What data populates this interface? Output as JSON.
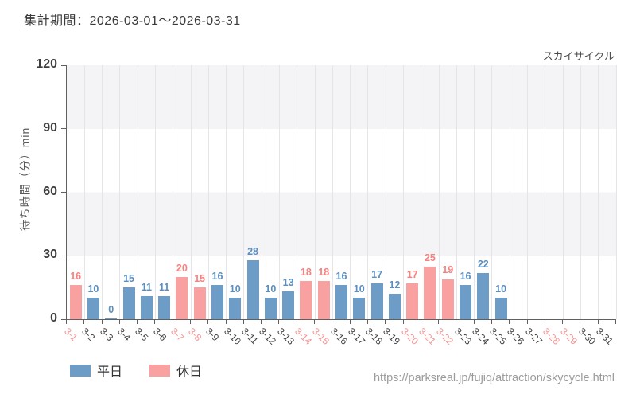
{
  "title": "集計期間：2026-03-01～2026-03-31",
  "chart_label": "スカイサイクル",
  "url": "https://parksreal.jp/fujiq/attraction/skycycle.html",
  "legend": {
    "weekday_label": "平日",
    "holiday_label": "休日"
  },
  "chart_data": {
    "type": "bar",
    "title": "スカイサイクル",
    "xlabel": "",
    "ylabel": "待ち時間（分）min",
    "ylim": [
      0,
      120
    ],
    "yticks": [
      0,
      30,
      60,
      90,
      120
    ],
    "grid": true,
    "legend_position": "bottom-left",
    "categories": [
      "3-1",
      "3-2",
      "3-3",
      "3-4",
      "3-5",
      "3-6",
      "3-7",
      "3-8",
      "3-9",
      "3-10",
      "3-11",
      "3-12",
      "3-13",
      "3-14",
      "3-15",
      "3-16",
      "3-17",
      "3-18",
      "3-19",
      "3-20",
      "3-21",
      "3-22",
      "3-23",
      "3-24",
      "3-25",
      "3-26",
      "3-27",
      "3-28",
      "3-29",
      "3-30",
      "3-31"
    ],
    "values": [
      16,
      10,
      0,
      15,
      11,
      11,
      20,
      15,
      16,
      10,
      28,
      10,
      13,
      18,
      18,
      16,
      10,
      17,
      12,
      17,
      25,
      19,
      16,
      22,
      10,
      null,
      null,
      null,
      null,
      null,
      null
    ],
    "day_types": [
      "holiday",
      "weekday",
      "weekday",
      "weekday",
      "weekday",
      "weekday",
      "holiday",
      "holiday",
      "weekday",
      "weekday",
      "weekday",
      "weekday",
      "weekday",
      "holiday",
      "holiday",
      "weekday",
      "weekday",
      "weekday",
      "weekday",
      "holiday",
      "holiday",
      "holiday",
      "weekday",
      "weekday",
      "weekday",
      "weekday",
      "weekday",
      "holiday",
      "holiday",
      "weekday",
      "weekday"
    ],
    "colors": {
      "weekday_bar": "#6d9cc6",
      "holiday_bar": "#f9a1a1",
      "weekday_value_label": "#5b8fc0",
      "holiday_value_label": "#f8807f",
      "weekday_axis_label": "#3f3f3f",
      "holiday_axis_label": "#f59493",
      "band_gray": "#f4f4f6",
      "band_white": "#ffffff",
      "gridline": "#e4e4e9",
      "axis": "#606060"
    }
  }
}
